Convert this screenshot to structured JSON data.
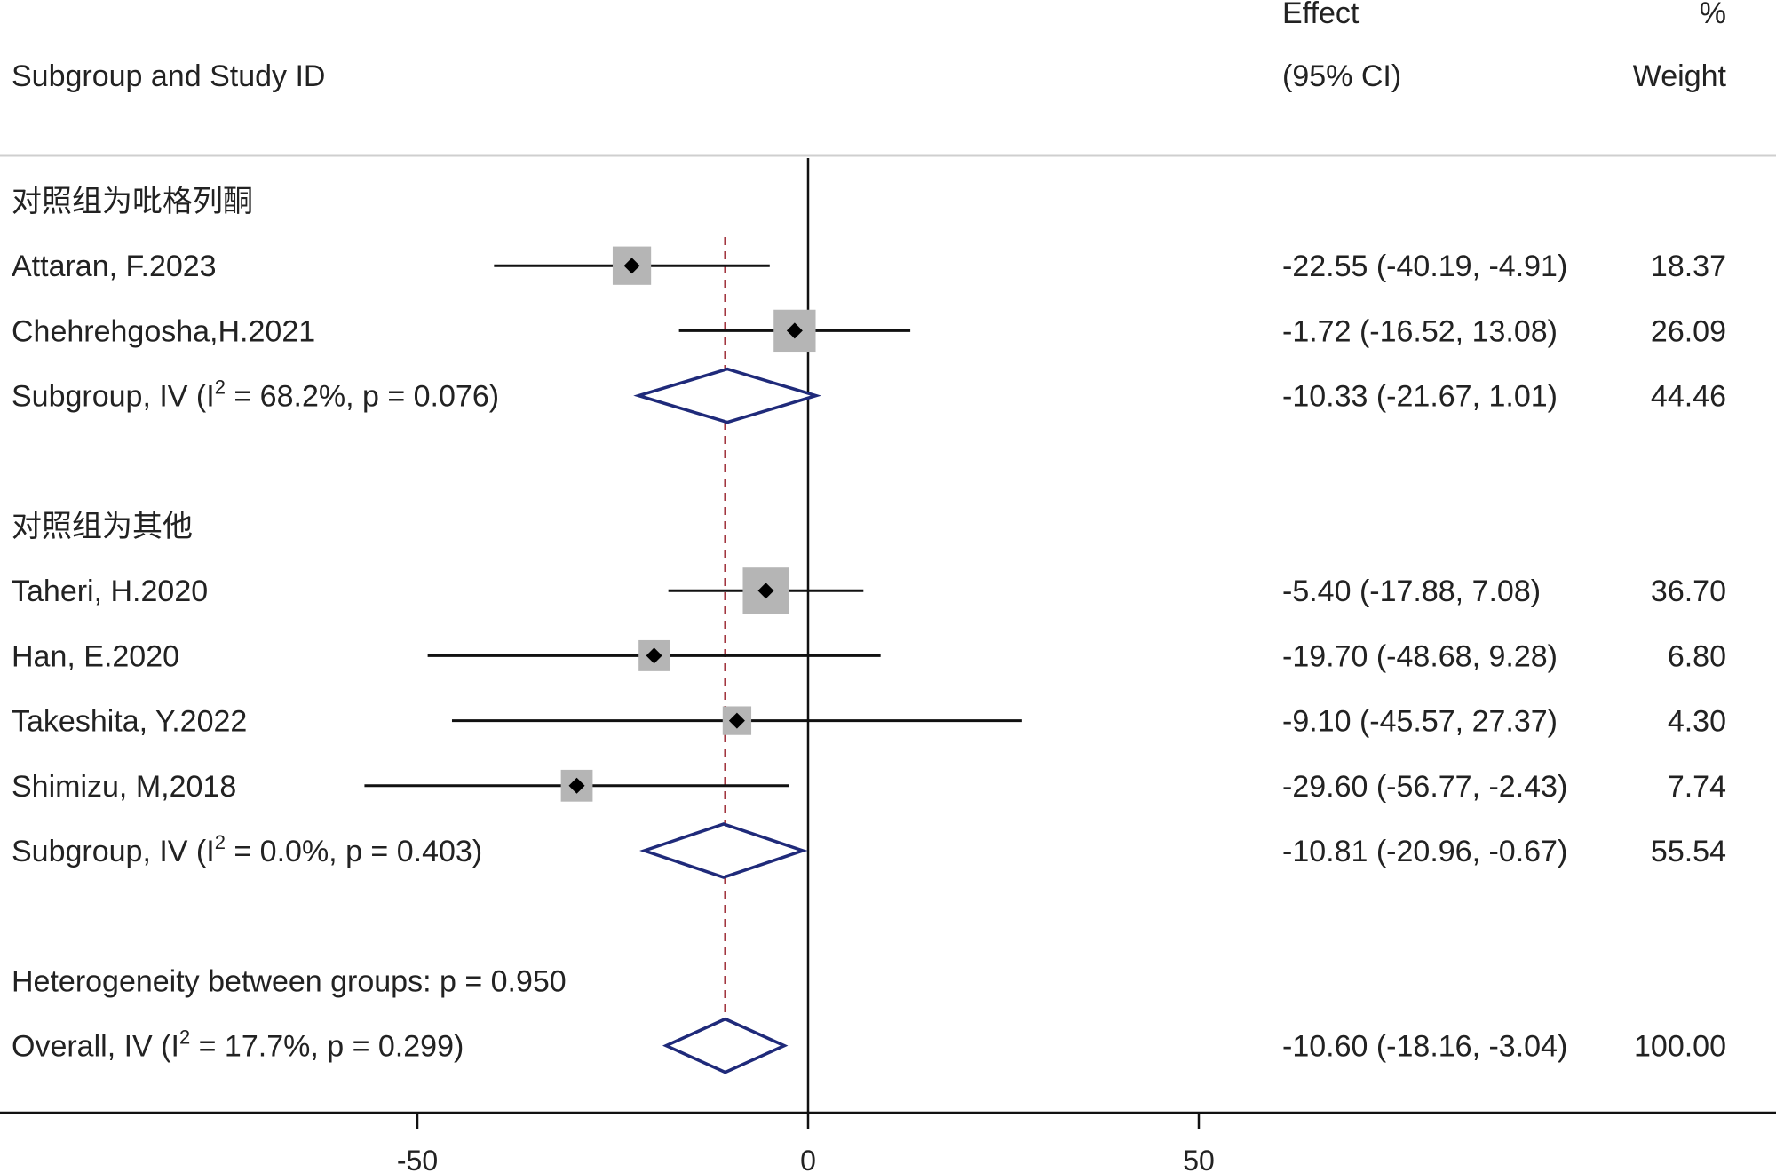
{
  "header": {
    "study_col": "Subgroup and Study ID",
    "effect_line1": "Effect",
    "effect_line2": "(95% CI)",
    "weight_line1": "%",
    "weight_line2": "Weight"
  },
  "chart_data": {
    "type": "forest",
    "xlim": [
      -100,
      120
    ],
    "xticks": [
      -50,
      0,
      50
    ],
    "xtick_labels": [
      "-50",
      "0",
      "50"
    ],
    "null_line": 0,
    "overall_line": -10.6,
    "colors": {
      "square": "#b5b5b5",
      "diamond": "#1f2a7a",
      "overall_line": "#a0303a",
      "text": "#222222"
    },
    "rows": [
      {
        "kind": "group",
        "label": "对照组为吡格列酮"
      },
      {
        "kind": "study",
        "label": "Attaran, F.2023",
        "effect": -22.55,
        "lower": -40.19,
        "upper": -4.91,
        "effect_text": "-22.55 (-40.19, -4.91)",
        "weight": 18.37,
        "weight_text": "18.37"
      },
      {
        "kind": "study",
        "label": "Chehrehgosha,H.2021",
        "effect": -1.72,
        "lower": -16.52,
        "upper": 13.08,
        "effect_text": "-1.72 (-16.52, 13.08)",
        "weight": 26.09,
        "weight_text": "26.09"
      },
      {
        "kind": "subgroup",
        "label_pre": "Subgroup, IV (I",
        "label_sup": "2",
        "label_post": " = 68.2%, p = 0.076)",
        "effect": -10.33,
        "lower": -21.67,
        "upper": 1.01,
        "effect_text": "-10.33 (-21.67, 1.01)",
        "weight_text": "44.46"
      },
      {
        "kind": "blank"
      },
      {
        "kind": "group",
        "label": "对照组为其他"
      },
      {
        "kind": "study",
        "label": "Taheri, H.2020",
        "effect": -5.4,
        "lower": -17.88,
        "upper": 7.08,
        "effect_text": "-5.40 (-17.88, 7.08)",
        "weight": 36.7,
        "weight_text": "36.70"
      },
      {
        "kind": "study",
        "label": "Han, E.2020",
        "effect": -19.7,
        "lower": -48.68,
        "upper": 9.28,
        "effect_text": "-19.70 (-48.68, 9.28)",
        "weight": 6.8,
        "weight_text": "6.80"
      },
      {
        "kind": "study",
        "label": "Takeshita, Y.2022",
        "effect": -9.1,
        "lower": -45.57,
        "upper": 27.37,
        "effect_text": "-9.10 (-45.57, 27.37)",
        "weight": 4.3,
        "weight_text": "4.30"
      },
      {
        "kind": "study",
        "label": "Shimizu, M,2018",
        "effect": -29.6,
        "lower": -56.77,
        "upper": -2.43,
        "effect_text": "-29.60 (-56.77, -2.43)",
        "weight": 7.74,
        "weight_text": "7.74"
      },
      {
        "kind": "subgroup",
        "label_pre": "Subgroup, IV (I",
        "label_sup": "2",
        "label_post": " = 0.0%, p = 0.403)",
        "effect": -10.81,
        "lower": -20.96,
        "upper": -0.67,
        "effect_text": "-10.81 (-20.96, -0.67)",
        "weight_text": "55.54"
      },
      {
        "kind": "blank"
      },
      {
        "kind": "text",
        "label": "Heterogeneity between groups: p = 0.950"
      },
      {
        "kind": "overall",
        "label_pre": "Overall, IV (I",
        "label_sup": "2",
        "label_post": " = 17.7%, p = 0.299)",
        "effect": -10.6,
        "lower": -18.16,
        "upper": -3.04,
        "effect_text": "-10.60 (-18.16, -3.04)",
        "weight_text": "100.00"
      }
    ]
  }
}
